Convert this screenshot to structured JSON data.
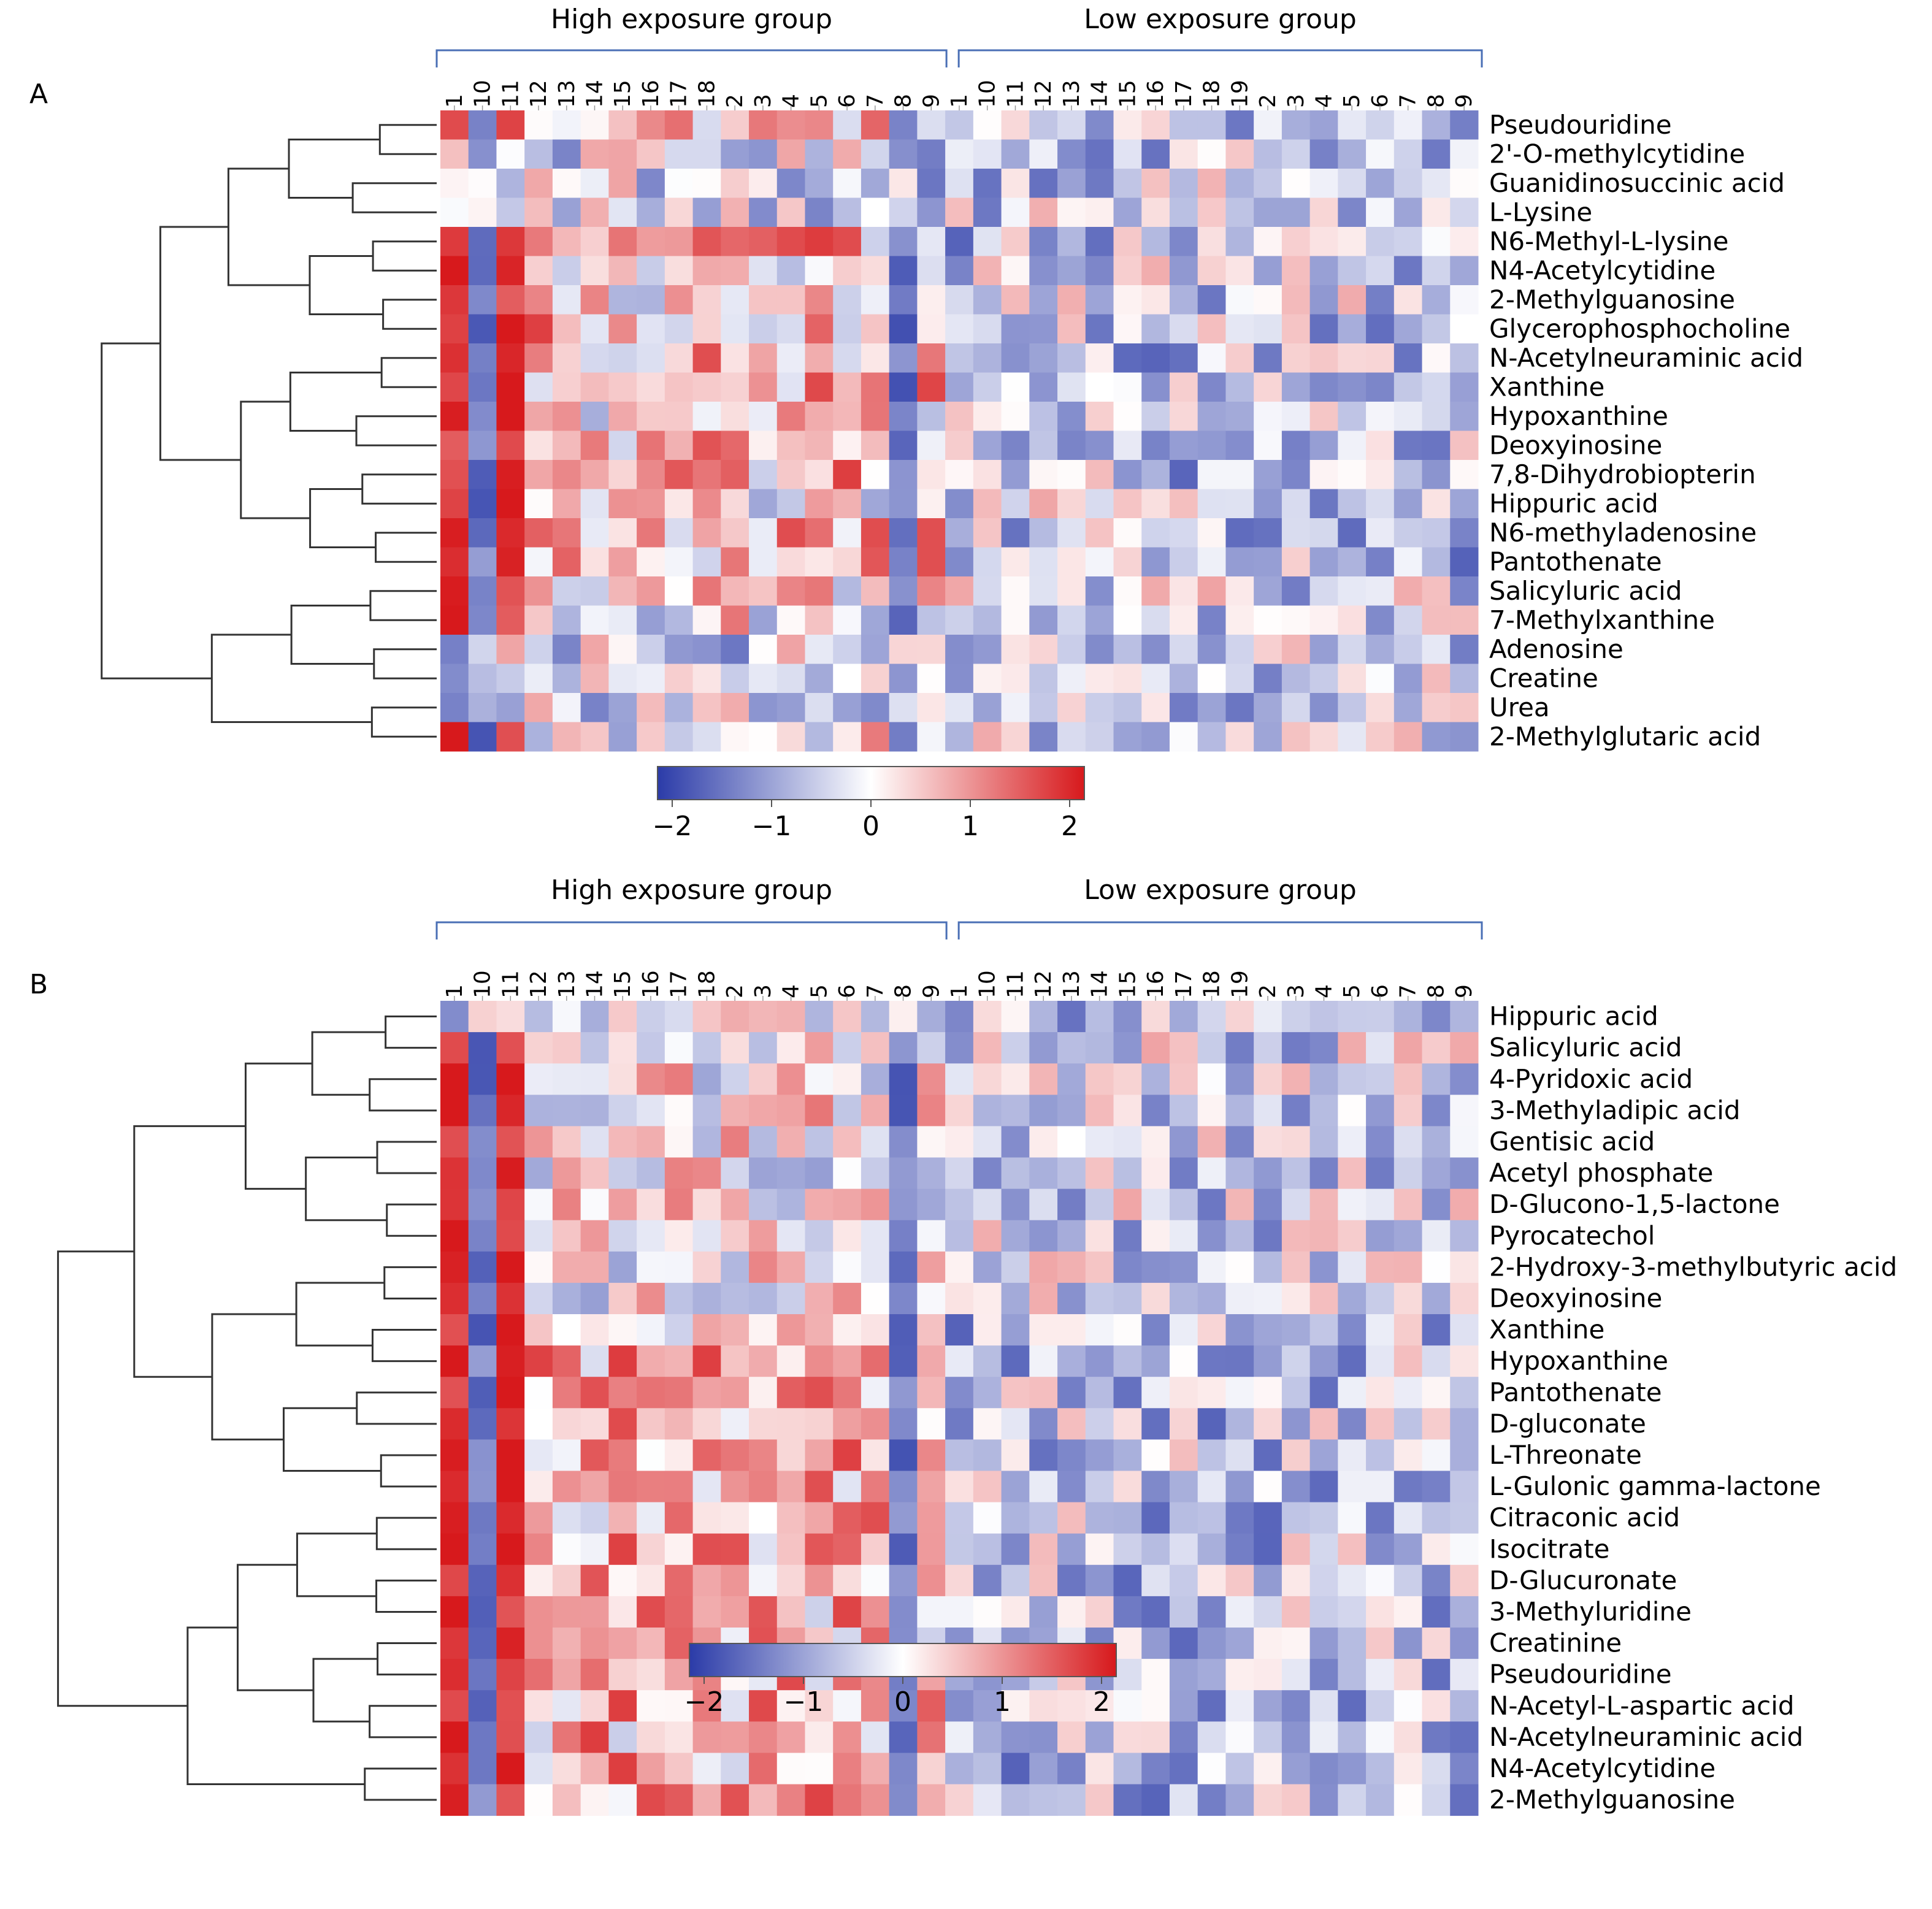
{
  "chart_data": [
    {
      "type": "heatmap",
      "panel_label": "A",
      "group_labels": [
        "High exposure group",
        "Low exposure group"
      ],
      "columns": [
        "1",
        "10",
        "11",
        "12",
        "13",
        "14",
        "15",
        "16",
        "17",
        "18",
        "2",
        "3",
        "4",
        "5",
        "6",
        "7",
        "8",
        "9",
        "1",
        "10",
        "11",
        "12",
        "13",
        "14",
        "15",
        "16",
        "17",
        "18",
        "19",
        "2",
        "3",
        "4",
        "5",
        "6",
        "7",
        "8",
        "9"
      ],
      "group_sizes": [
        18,
        19
      ],
      "rows": [
        "Pseudouridine",
        "2'-O-methylcytidine",
        "Guanidinosuccinic acid",
        "L-Lysine",
        "N6-Methyl-L-lysine",
        "N4-Acetylcytidine",
        "2-Methylguanosine",
        "Glycerophosphocholine",
        "N-Acetylneuraminic acid",
        "Xanthine",
        "Hypoxanthine",
        "Deoxyinosine",
        "7,8-Dihydrobiopterin",
        "Hippuric acid",
        "N6-methyladenosine",
        "Pantothenate",
        "Salicyluric acid",
        "7-Methylxanthine",
        "Adenosine",
        "Creatine",
        "Urea",
        "2-Methylglutaric acid"
      ],
      "colorbar": {
        "min": -2,
        "max": 2,
        "ticks": [
          "−2",
          "−1",
          "0",
          "1",
          "2"
        ]
      },
      "colors": {
        "low": "#2b3ba8",
        "mid": "#ffffff",
        "high": "#d7191c"
      },
      "dendrogram": "row clustering tree on left"
    },
    {
      "type": "heatmap",
      "panel_label": "B",
      "group_labels": [
        "High exposure group",
        "Low exposure group"
      ],
      "columns": [
        "1",
        "10",
        "11",
        "12",
        "13",
        "14",
        "15",
        "16",
        "17",
        "18",
        "2",
        "3",
        "4",
        "5",
        "6",
        "7",
        "8",
        "9",
        "1",
        "10",
        "11",
        "12",
        "13",
        "14",
        "15",
        "16",
        "17",
        "18",
        "19",
        "2",
        "3",
        "4",
        "5",
        "6",
        "7",
        "8",
        "9"
      ],
      "group_sizes": [
        18,
        19
      ],
      "rows": [
        "Hippuric acid",
        "Salicyluric acid",
        "4-Pyridoxic acid",
        "3-Methyladipic acid",
        "Gentisic acid",
        "Acetyl phosphate",
        "D-Glucono-1,5-lactone",
        "Pyrocatechol",
        "2-Hydroxy-3-methylbutyric acid",
        "Deoxyinosine",
        "Xanthine",
        "Hypoxanthine",
        "Pantothenate",
        "D-gluconate",
        "L-Threonate",
        "L-Gulonic gamma-lactone",
        "Citraconic acid",
        "Isocitrate",
        "D-Glucuronate",
        "3-Methyluridine",
        "Creatinine",
        "Pseudouridine",
        "N-Acetyl-L-aspartic acid",
        "N-Acetylneuraminic acid",
        "N4-Acetylcytidine",
        "2-Methylguanosine"
      ],
      "colorbar": {
        "min": -2,
        "max": 2,
        "ticks": [
          "−2",
          "−1",
          "0",
          "1",
          "2"
        ]
      },
      "colors": {
        "low": "#2b3ba8",
        "mid": "#ffffff",
        "high": "#d7191c"
      },
      "dendrogram": "row clustering tree on left"
    }
  ]
}
